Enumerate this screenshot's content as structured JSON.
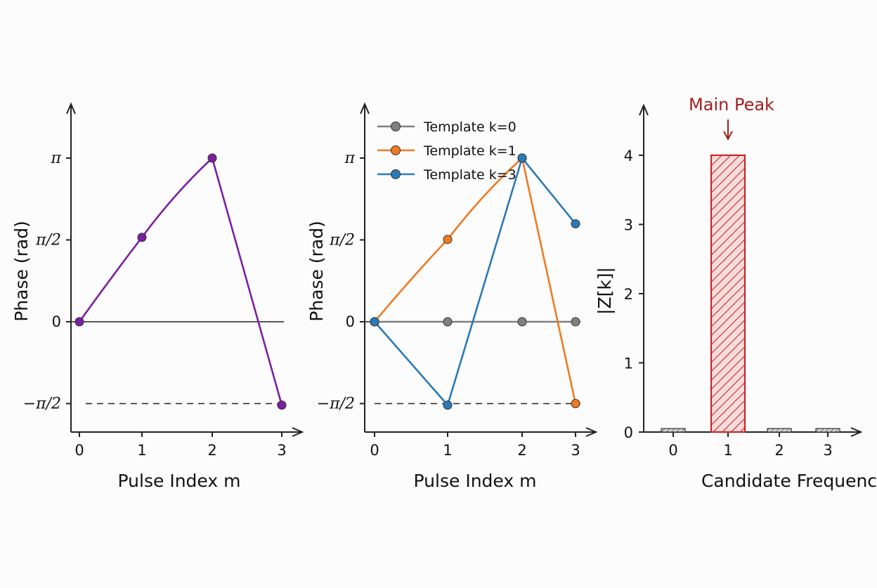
{
  "colors": {
    "single": "#7b1fa2",
    "k0": "#808080",
    "k1": "#ef7a22",
    "k3": "#2a7ab8",
    "peak": "#c62828",
    "annotation": "#a51d1d",
    "axis": "#222222"
  },
  "chart_data": [
    {
      "type": "line",
      "xlabel": "Pulse Index m",
      "ylabel": "Phase (rad)",
      "x_ticks": [
        "0",
        "1",
        "2",
        "3"
      ],
      "y_ticks": [
        {
          "value": 3.1416,
          "label": "π"
        },
        {
          "value": 1.5708,
          "label": "π/2"
        },
        {
          "value": 0,
          "label": "0"
        },
        {
          "value": -1.5708,
          "label": "−π/2"
        }
      ],
      "reference_lines": [
        {
          "y": -1.5708,
          "style": "dashed"
        }
      ],
      "series": [
        {
          "color": "single",
          "x": [
            0,
            1,
            2,
            3
          ],
          "y": [
            0,
            1.62,
            3.1416,
            -1.6
          ]
        }
      ]
    },
    {
      "type": "line",
      "xlabel": "Pulse Index m",
      "ylabel": "Phase (rad)",
      "x_ticks": [
        "0",
        "1",
        "2",
        "3"
      ],
      "y_ticks": [
        {
          "value": 3.1416,
          "label": "π"
        },
        {
          "value": 1.5708,
          "label": "π/2"
        },
        {
          "value": 0,
          "label": "0"
        },
        {
          "value": -1.5708,
          "label": "−π/2"
        }
      ],
      "reference_lines": [
        {
          "y": -1.5708,
          "style": "dashed"
        }
      ],
      "legend_position": "top-left",
      "series": [
        {
          "name": "Template k=0",
          "color": "k0",
          "x": [
            0,
            1,
            2,
            3
          ],
          "y": [
            0,
            0,
            0,
            0
          ]
        },
        {
          "name": "Template k=1",
          "color": "k1",
          "x": [
            0,
            1,
            2,
            3
          ],
          "y": [
            0,
            1.58,
            3.1416,
            -1.5708
          ]
        },
        {
          "name": "Template k=3",
          "color": "k3",
          "x": [
            0,
            1,
            2,
            3
          ],
          "y": [
            0,
            -1.6,
            3.1416,
            1.88
          ]
        }
      ]
    },
    {
      "type": "bar",
      "xlabel": "Candidate Frequency Index k",
      "ylabel": "|Z[k]|",
      "categories": [
        "0",
        "1",
        "2",
        "3"
      ],
      "values": [
        0.05,
        4.0,
        0.05,
        0.05
      ],
      "ylim": [
        0,
        4.5
      ],
      "y_ticks": [
        "0",
        "1",
        "2",
        "3",
        "4"
      ],
      "annotation": {
        "text": "Main Peak",
        "category": "1"
      }
    }
  ]
}
